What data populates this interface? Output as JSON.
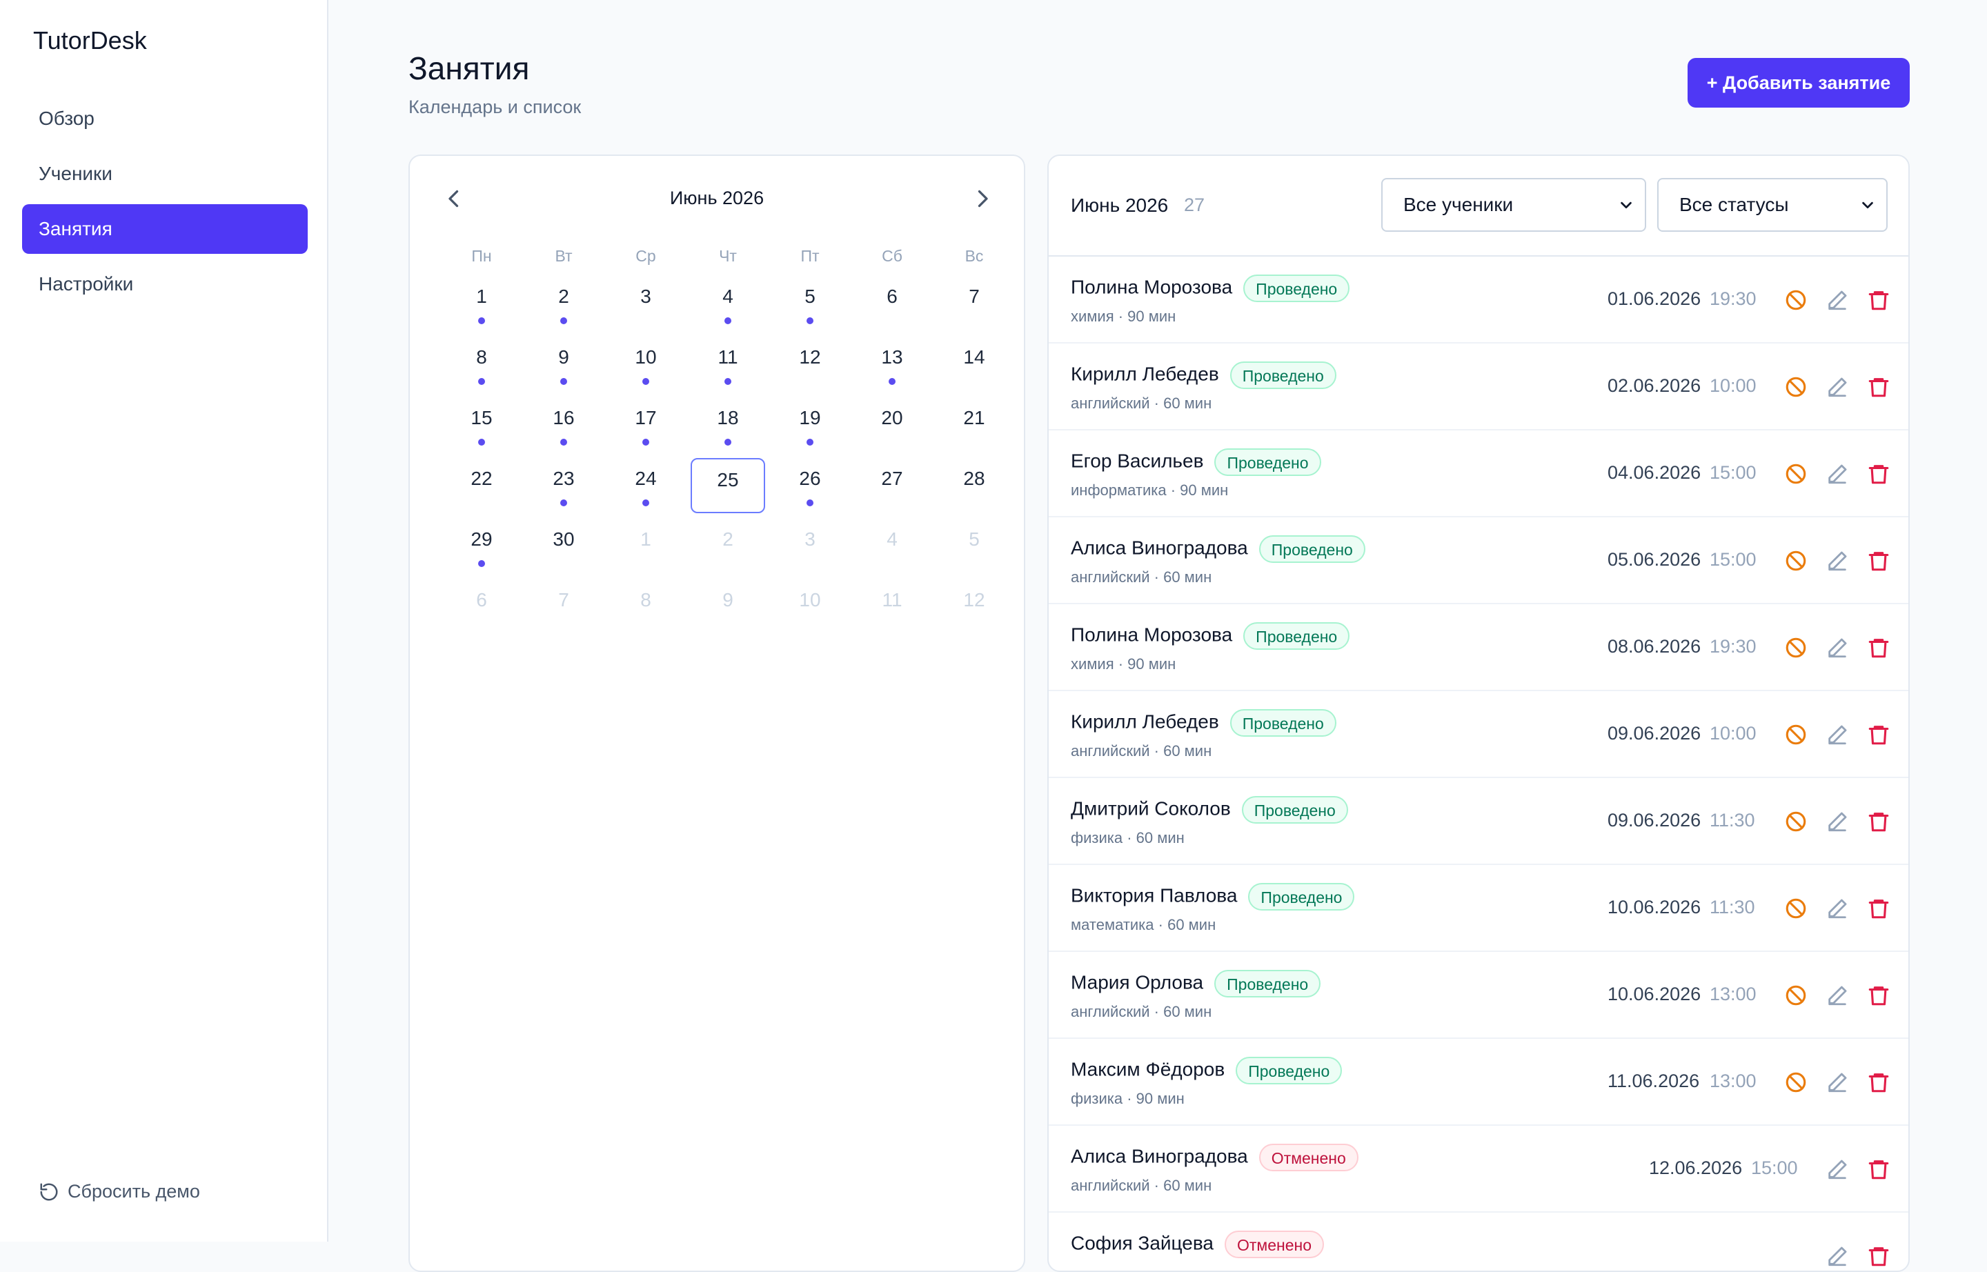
{
  "app": {
    "name": "TutorDesk"
  },
  "nav": [
    {
      "label": "Обзор",
      "active": false
    },
    {
      "label": "Ученики",
      "active": false
    },
    {
      "label": "Занятия",
      "active": true
    },
    {
      "label": "Настройки",
      "active": false
    }
  ],
  "reset_label": "Сбросить демо",
  "header": {
    "title": "Занятия",
    "subtitle": "Календарь и список",
    "add_button": "+ Добавить занятие"
  },
  "calendar": {
    "month_label": "Июнь 2026",
    "weekdays": [
      "Пн",
      "Вт",
      "Ср",
      "Чт",
      "Пт",
      "Сб",
      "Вс"
    ],
    "weeks": [
      [
        {
          "d": "1",
          "dot": true
        },
        {
          "d": "2",
          "dot": true
        },
        {
          "d": "3",
          "dot": false
        },
        {
          "d": "4",
          "dot": true
        },
        {
          "d": "5",
          "dot": true
        },
        {
          "d": "6",
          "dot": false
        },
        {
          "d": "7",
          "dot": false
        }
      ],
      [
        {
          "d": "8",
          "dot": true
        },
        {
          "d": "9",
          "dot": true
        },
        {
          "d": "10",
          "dot": true
        },
        {
          "d": "11",
          "dot": true
        },
        {
          "d": "12",
          "dot": false
        },
        {
          "d": "13",
          "dot": true
        },
        {
          "d": "14",
          "dot": false
        }
      ],
      [
        {
          "d": "15",
          "dot": true
        },
        {
          "d": "16",
          "dot": true
        },
        {
          "d": "17",
          "dot": true
        },
        {
          "d": "18",
          "dot": true
        },
        {
          "d": "19",
          "dot": true
        },
        {
          "d": "20",
          "dot": false
        },
        {
          "d": "21",
          "dot": false
        }
      ],
      [
        {
          "d": "22",
          "dot": false
        },
        {
          "d": "23",
          "dot": true
        },
        {
          "d": "24",
          "dot": true
        },
        {
          "d": "25",
          "dot": false,
          "today": true
        },
        {
          "d": "26",
          "dot": true
        },
        {
          "d": "27",
          "dot": false
        },
        {
          "d": "28",
          "dot": false
        }
      ],
      [
        {
          "d": "29",
          "dot": true
        },
        {
          "d": "30",
          "dot": false
        },
        {
          "d": "1",
          "other": true
        },
        {
          "d": "2",
          "other": true
        },
        {
          "d": "3",
          "other": true
        },
        {
          "d": "4",
          "other": true
        },
        {
          "d": "5",
          "other": true
        }
      ],
      [
        {
          "d": "6",
          "other": true
        },
        {
          "d": "7",
          "other": true
        },
        {
          "d": "8",
          "other": true
        },
        {
          "d": "9",
          "other": true
        },
        {
          "d": "10",
          "other": true
        },
        {
          "d": "11",
          "other": true
        },
        {
          "d": "12",
          "other": true
        }
      ]
    ]
  },
  "list": {
    "month_label": "Июнь 2026",
    "count": "27",
    "filter_students": "Все ученики",
    "filter_status": "Все статусы",
    "lessons": [
      {
        "name": "Полина Морозова",
        "status": "Проведено",
        "kind": "done",
        "sub": "химия · 90 мин",
        "date": "01.06.2026",
        "time": "19:30"
      },
      {
        "name": "Кирилл Лебедев",
        "status": "Проведено",
        "kind": "done",
        "sub": "английский · 60 мин",
        "date": "02.06.2026",
        "time": "10:00"
      },
      {
        "name": "Егор Васильев",
        "status": "Проведено",
        "kind": "done",
        "sub": "информатика · 90 мин",
        "date": "04.06.2026",
        "time": "15:00"
      },
      {
        "name": "Алиса Виноградова",
        "status": "Проведено",
        "kind": "done",
        "sub": "английский · 60 мин",
        "date": "05.06.2026",
        "time": "15:00"
      },
      {
        "name": "Полина Морозова",
        "status": "Проведено",
        "kind": "done",
        "sub": "химия · 90 мин",
        "date": "08.06.2026",
        "time": "19:30"
      },
      {
        "name": "Кирилл Лебедев",
        "status": "Проведено",
        "kind": "done",
        "sub": "английский · 60 мин",
        "date": "09.06.2026",
        "time": "10:00"
      },
      {
        "name": "Дмитрий Соколов",
        "status": "Проведено",
        "kind": "done",
        "sub": "физика · 60 мин",
        "date": "09.06.2026",
        "time": "11:30"
      },
      {
        "name": "Виктория Павлова",
        "status": "Проведено",
        "kind": "done",
        "sub": "математика · 60 мин",
        "date": "10.06.2026",
        "time": "11:30"
      },
      {
        "name": "Мария Орлова",
        "status": "Проведено",
        "kind": "done",
        "sub": "английский · 60 мин",
        "date": "10.06.2026",
        "time": "13:00"
      },
      {
        "name": "Максим Фёдоров",
        "status": "Проведено",
        "kind": "done",
        "sub": "физика · 90 мин",
        "date": "11.06.2026",
        "time": "13:00"
      },
      {
        "name": "Алиса Виноградова",
        "status": "Отменено",
        "kind": "cancel",
        "sub": "английский · 60 мин",
        "date": "12.06.2026",
        "time": "15:00"
      },
      {
        "name": "София Зайцева",
        "status": "Отменено",
        "kind": "cancel",
        "sub": "",
        "date": "",
        "time": ""
      }
    ]
  },
  "colors": {
    "accent": "#4f38f5",
    "cancel_icon": "#ea7c0c",
    "delete_icon": "#e11d48",
    "edit_icon": "#94a3b8"
  }
}
